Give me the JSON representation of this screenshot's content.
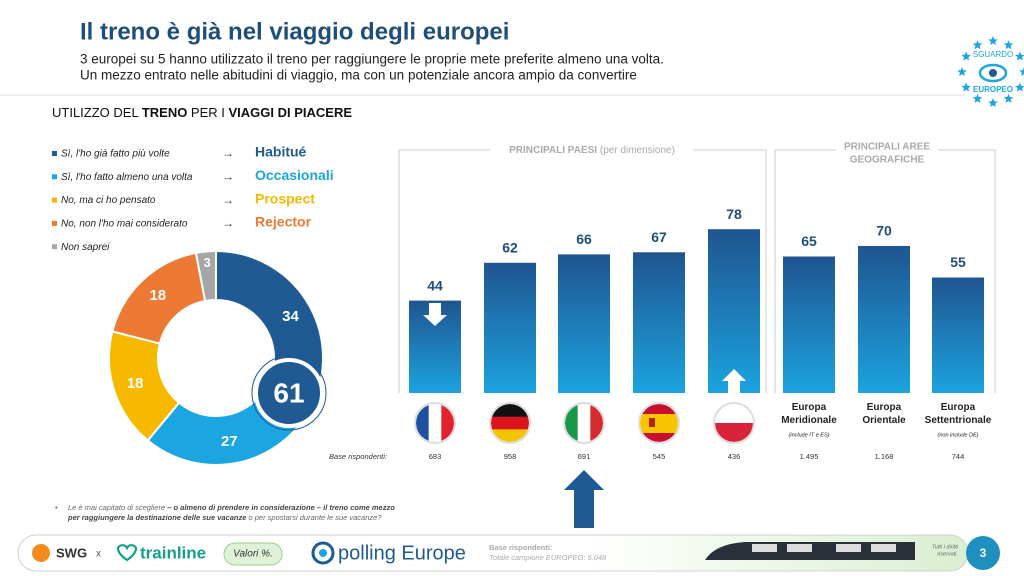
{
  "header": {
    "title": "Il treno è già nel viaggio degli europei",
    "subtitle_lines": [
      "3 europei su 5 hanno utilizzato il treno per raggiungere le proprie mete preferite almeno una volta.",
      "Un mezzo entrato nelle abitudini di viaggio, ma con un potenziale ancora ampio da convertire"
    ]
  },
  "badge": {
    "top": "SGUARDO",
    "bottom": "EUROPEO"
  },
  "section_title": {
    "parts": [
      "UTILIZZO DEL ",
      "TRENO",
      " PER I ",
      "VIAGGI DI PIACERE"
    ]
  },
  "chart_data": [
    {
      "type": "donut",
      "categories": [
        "Sì, l'ho già fatto più volte",
        "Sì, l'ho fatto almeno una volta",
        "No, ma ci ho pensato",
        "No, non l'ho mai considerato",
        "Non saprei"
      ],
      "groups": [
        "Habitué",
        "Occasionali",
        "Prospect",
        "Rejector",
        null
      ],
      "values": [
        34,
        27,
        18,
        18,
        3
      ],
      "colors": [
        "#1f5a93",
        "#1ba6e1",
        "#f7b900",
        "#ec7a34",
        "#a6a6a6"
      ],
      "center_value": 61
    },
    {
      "type": "bar",
      "groups": [
        {
          "title": "PRINCIPALI PAESI",
          "subtitle": "(per dimensione)"
        },
        {
          "title_lines": [
            "PRINCIPALI AREE",
            "GEOGRAFICHE"
          ]
        }
      ],
      "categories": [
        null,
        null,
        null,
        null,
        null,
        "Europa Meridionale",
        "Europa Orientale",
        "Europa Settentrionale"
      ],
      "notes": [
        null,
        null,
        null,
        null,
        null,
        "(include IT e ES)",
        null,
        "(non include DE)"
      ],
      "values": [
        44,
        62,
        66,
        67,
        78,
        65,
        70,
        55
      ],
      "gradient": [
        "#1f5591",
        "#1ca3de"
      ],
      "base_label": "Base rispondenti:",
      "base": [
        "683",
        "958",
        "691",
        "545",
        "436",
        "1.495",
        "1.168",
        "744"
      ]
    }
  ],
  "footnote": {
    "line1": [
      "Le è mai capitato di scegliere ",
      "– o almeno di prendere in considerazione –",
      " il treno come mezzo"
    ],
    "line2": [
      "per raggiungere la destinazione delle sue vacanze",
      " o per spostarsi durante le sue vacanze?"
    ]
  },
  "footer": {
    "swg": "SWG",
    "x": "x",
    "trainline": "trainline",
    "values_note": "Valori %.",
    "polling": "polling Europe",
    "base_title": "Base rispondenti:",
    "base_text": "Totale campione EUROPEO: 5.048",
    "rights_lines": [
      "Tutti i diritti",
      "riservati."
    ],
    "page": "3"
  }
}
